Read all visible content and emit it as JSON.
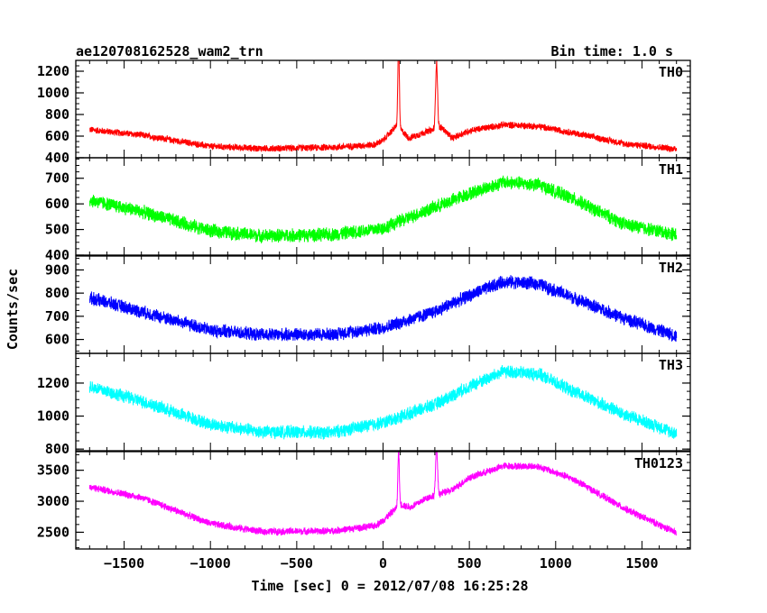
{
  "chart_data": {
    "type": "line",
    "title_left": "ae120708162528_wam2_trn",
    "title_right": "Bin time: 1.0 s",
    "xlabel": "Time [sec] 0 = 2012/07/08 16:25:28",
    "ylabel": "Counts/sec",
    "xlim": [
      -1780,
      1780
    ],
    "x_ticks": [
      -1500,
      -1000,
      -500,
      0,
      500,
      1000,
      1500
    ],
    "x_range_data": [
      -1700,
      1700
    ],
    "panels": [
      {
        "name": "TH0",
        "color": "#ff0000",
        "ylim": [
          400,
          1300
        ],
        "y_ticks": [
          400,
          600,
          800,
          1000,
          1200
        ],
        "noise": 35,
        "peaks": [
          {
            "x": 90,
            "height": 800,
            "width": 6
          },
          {
            "x": 310,
            "height": 620,
            "width": 8
          }
        ],
        "profile": [
          [
            -1700,
            660
          ],
          [
            -1400,
            610
          ],
          [
            -1000,
            505
          ],
          [
            -700,
            485
          ],
          [
            -300,
            495
          ],
          [
            -50,
            520
          ],
          [
            0,
            560
          ],
          [
            80,
            700
          ],
          [
            150,
            580
          ],
          [
            250,
            640
          ],
          [
            340,
            680
          ],
          [
            400,
            580
          ],
          [
            500,
            650
          ],
          [
            700,
            705
          ],
          [
            900,
            690
          ],
          [
            1100,
            630
          ],
          [
            1400,
            530
          ],
          [
            1700,
            480
          ]
        ]
      },
      {
        "name": "TH1",
        "color": "#00ff00",
        "ylim": [
          400,
          780
        ],
        "y_ticks": [
          400,
          500,
          600,
          700
        ],
        "noise": 30,
        "peaks": [],
        "profile": [
          [
            -1700,
            615
          ],
          [
            -1400,
            570
          ],
          [
            -1000,
            495
          ],
          [
            -700,
            475
          ],
          [
            -300,
            480
          ],
          [
            0,
            505
          ],
          [
            200,
            560
          ],
          [
            350,
            600
          ],
          [
            500,
            640
          ],
          [
            700,
            685
          ],
          [
            900,
            675
          ],
          [
            1100,
            620
          ],
          [
            1400,
            520
          ],
          [
            1700,
            480
          ]
        ]
      },
      {
        "name": "TH2",
        "color": "#0000ff",
        "ylim": [
          540,
          960
        ],
        "y_ticks": [
          600,
          700,
          800,
          900
        ],
        "noise": 32,
        "peaks": [],
        "profile": [
          [
            -1700,
            780
          ],
          [
            -1400,
            720
          ],
          [
            -1000,
            640
          ],
          [
            -700,
            620
          ],
          [
            -300,
            622
          ],
          [
            0,
            650
          ],
          [
            300,
            720
          ],
          [
            500,
            790
          ],
          [
            700,
            850
          ],
          [
            900,
            840
          ],
          [
            1100,
            780
          ],
          [
            1400,
            690
          ],
          [
            1700,
            615
          ]
        ]
      },
      {
        "name": "TH3",
        "color": "#00ffff",
        "ylim": [
          790,
          1380
        ],
        "y_ticks": [
          800,
          1000,
          1200
        ],
        "noise": 45,
        "peaks": [],
        "profile": [
          [
            -1700,
            1180
          ],
          [
            -1400,
            1090
          ],
          [
            -1000,
            950
          ],
          [
            -700,
            905
          ],
          [
            -300,
            900
          ],
          [
            0,
            960
          ],
          [
            300,
            1070
          ],
          [
            500,
            1180
          ],
          [
            700,
            1270
          ],
          [
            900,
            1255
          ],
          [
            1100,
            1150
          ],
          [
            1400,
            1010
          ],
          [
            1700,
            895
          ]
        ]
      },
      {
        "name": "TH0123",
        "color": "#ff00ff",
        "ylim": [
          2230,
          3800
        ],
        "y_ticks": [
          2500,
          3000,
          3500
        ],
        "noise": 65,
        "peaks": [
          {
            "x": 90,
            "height": 900,
            "width": 6
          },
          {
            "x": 310,
            "height": 760,
            "width": 8
          }
        ],
        "profile": [
          [
            -1700,
            3230
          ],
          [
            -1400,
            3060
          ],
          [
            -1000,
            2640
          ],
          [
            -700,
            2510
          ],
          [
            -300,
            2520
          ],
          [
            -50,
            2600
          ],
          [
            0,
            2690
          ],
          [
            100,
            2950
          ],
          [
            160,
            2900
          ],
          [
            250,
            3050
          ],
          [
            400,
            3180
          ],
          [
            500,
            3380
          ],
          [
            700,
            3570
          ],
          [
            900,
            3560
          ],
          [
            1100,
            3360
          ],
          [
            1400,
            2880
          ],
          [
            1700,
            2490
          ]
        ]
      }
    ]
  }
}
